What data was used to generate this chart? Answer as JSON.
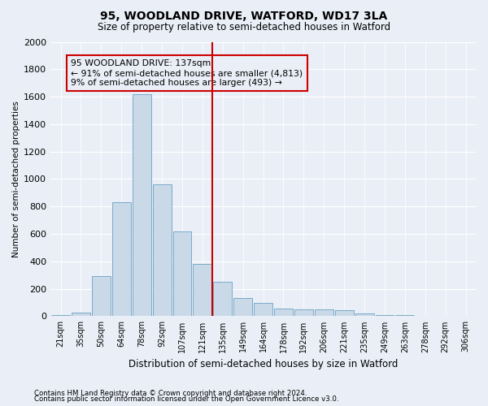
{
  "title": "95, WOODLAND DRIVE, WATFORD, WD17 3LA",
  "subtitle": "Size of property relative to semi-detached houses in Watford",
  "xlabel": "Distribution of semi-detached houses by size in Watford",
  "ylabel": "Number of semi-detached properties",
  "footnote1": "Contains HM Land Registry data © Crown copyright and database right 2024.",
  "footnote2": "Contains public sector information licensed under the Open Government Licence v3.0.",
  "bar_labels": [
    "21sqm",
    "35sqm",
    "50sqm",
    "64sqm",
    "78sqm",
    "92sqm",
    "107sqm",
    "121sqm",
    "135sqm",
    "149sqm",
    "164sqm",
    "178sqm",
    "192sqm",
    "206sqm",
    "221sqm",
    "235sqm",
    "249sqm",
    "263sqm",
    "278sqm",
    "292sqm",
    "306sqm"
  ],
  "bar_values": [
    8,
    25,
    290,
    830,
    1620,
    960,
    620,
    380,
    250,
    130,
    100,
    58,
    52,
    48,
    43,
    18,
    10,
    8,
    5,
    5,
    5
  ],
  "bar_color": "#c9d9e8",
  "bar_edgecolor": "#7aaac8",
  "ylim": [
    0,
    2000
  ],
  "yticks": [
    0,
    200,
    400,
    600,
    800,
    1000,
    1200,
    1400,
    1600,
    1800,
    2000
  ],
  "vline_color": "#cc0000",
  "annotation_title": "95 WOODLAND DRIVE: 137sqm",
  "annotation_line1": "← 91% of semi-detached houses are smaller (4,813)",
  "annotation_line2": "9% of semi-detached houses are larger (493) →",
  "annotation_box_color": "#cc0000",
  "bg_color": "#eaeff7",
  "grid_color": "#ffffff"
}
